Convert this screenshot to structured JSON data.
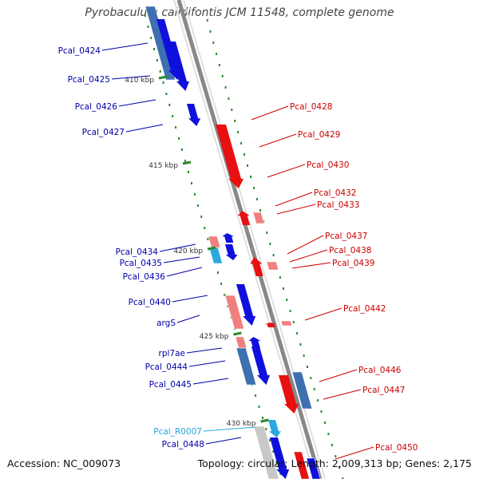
{
  "title": "Pyrobaculum calidifontis JCM 11548, complete genome",
  "accession": "Accession: NC_009073",
  "summary": "Topology: circular; Length: 2,009,313 bp; Genes: 2,175",
  "colors": {
    "forward_gene": "#1010dd",
    "forward_rna": "#2aa8e0",
    "reverse_gene": "#e81010",
    "cds_blue": "#3e6fb0",
    "cds_pink": "#f07f7f",
    "cds_grey": "#c8c8c8",
    "tick": "#2b8a2b",
    "backbone": "#888888"
  },
  "ticks": [
    "410 kbp",
    "415 kbp",
    "420 kbp",
    "425 kbp",
    "430 kbp"
  ],
  "left_labels": [
    {
      "text": "Pcal_0424",
      "color": "#0000aa"
    },
    {
      "text": "Pcal_0425",
      "color": "#0000aa"
    },
    {
      "text": "Pcal_0426",
      "color": "#0000aa"
    },
    {
      "text": "Pcal_0427",
      "color": "#0000aa"
    },
    {
      "text": "Pcal_0434",
      "color": "#0000aa"
    },
    {
      "text": "Pcal_0435",
      "color": "#0000aa"
    },
    {
      "text": "Pcal_0436",
      "color": "#0000aa"
    },
    {
      "text": "Pcal_0440",
      "color": "#0000aa"
    },
    {
      "text": "argS",
      "color": "#0000aa"
    },
    {
      "text": "rpl7ae",
      "color": "#0000aa"
    },
    {
      "text": "Pcal_0444",
      "color": "#0000aa"
    },
    {
      "text": "Pcal_0445",
      "color": "#0000aa"
    },
    {
      "text": "Pcal_R0007",
      "color": "#22aadd"
    },
    {
      "text": "Pcal_0448",
      "color": "#0000aa"
    }
  ],
  "right_labels": [
    {
      "text": "Pcal_0428",
      "color": "#cc0000"
    },
    {
      "text": "Pcal_0429",
      "color": "#cc0000"
    },
    {
      "text": "Pcal_0430",
      "color": "#cc0000"
    },
    {
      "text": "Pcal_0432",
      "color": "#cc0000"
    },
    {
      "text": "Pcal_0433",
      "color": "#cc0000"
    },
    {
      "text": "Pcal_0437",
      "color": "#cc0000"
    },
    {
      "text": "Pcal_0438",
      "color": "#cc0000"
    },
    {
      "text": "Pcal_0439",
      "color": "#cc0000"
    },
    {
      "text": "Pcal_0442",
      "color": "#cc0000"
    },
    {
      "text": "Pcal_0446",
      "color": "#cc0000"
    },
    {
      "text": "Pcal_0447",
      "color": "#cc0000"
    },
    {
      "text": "Pcal_0450",
      "color": "#cc0000"
    }
  ]
}
